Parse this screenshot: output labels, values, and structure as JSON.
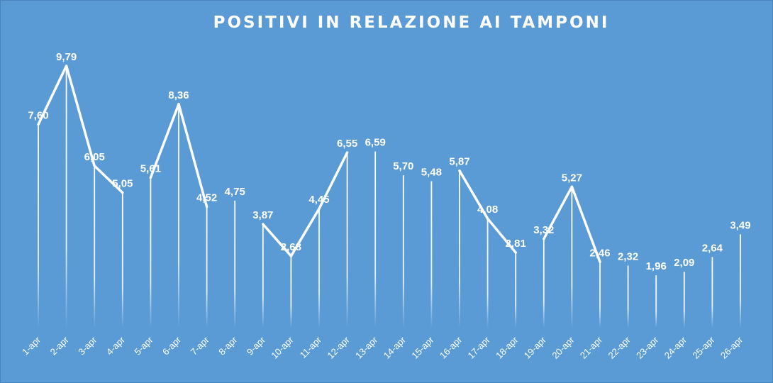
{
  "chart_data": {
    "type": "line",
    "title": "POSITIVI IN RELAZIONE AI TAMPONI",
    "xlabel": "",
    "ylabel": "",
    "ylim": [
      0,
      11.5
    ],
    "grid": false,
    "legend": "none",
    "colors": {
      "background": "#5b9bd5",
      "line": "#ffffff",
      "text": "#ffffff"
    },
    "categories": [
      "1-apr",
      "2-apr",
      "3-apr",
      "4-apr",
      "5-apr",
      "6-apr",
      "7-apr",
      "8-apr",
      "9-apr",
      "10-apr",
      "11-apr",
      "12-apr",
      "13-apr",
      "14-apr",
      "15-apr",
      "16-apr",
      "17-apr",
      "18-apr",
      "19-apr",
      "20-apr",
      "21-apr",
      "22-apr",
      "23-apr",
      "24-apr",
      "25-apr",
      "26-apr"
    ],
    "values": [
      7.6,
      9.79,
      6.05,
      5.05,
      5.61,
      8.36,
      4.52,
      4.75,
      3.87,
      2.68,
      4.45,
      6.55,
      6.59,
      5.7,
      5.48,
      5.87,
      4.08,
      2.81,
      3.32,
      5.27,
      2.46,
      2.32,
      1.96,
      2.09,
      2.64,
      3.49
    ],
    "labels": [
      "7,60",
      "9,79",
      "6,05",
      "5,05",
      "5,61",
      "8,36",
      "4,52",
      "4,75",
      "3,87",
      "2,68",
      "4,45",
      "6,55",
      "6,59",
      "5,70",
      "5,48",
      "5,87",
      "4,08",
      "2,81",
      "3,32",
      "5,27",
      "2,46",
      "2,32",
      "1,96",
      "2,09",
      "2,64",
      "3,49"
    ],
    "segments": [
      [
        0,
        1
      ],
      [
        1,
        2
      ],
      [
        2,
        3
      ],
      [
        4,
        5
      ],
      [
        5,
        6
      ],
      [
        8,
        9
      ],
      [
        9,
        10
      ],
      [
        10,
        11
      ],
      [
        15,
        16
      ],
      [
        16,
        17
      ],
      [
        18,
        19
      ],
      [
        19,
        20
      ]
    ]
  }
}
